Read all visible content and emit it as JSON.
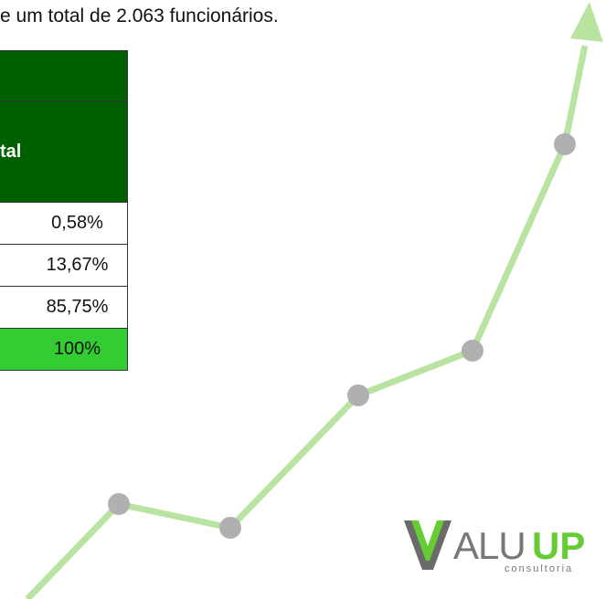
{
  "caption": "e um total de 2.063 funcionários.",
  "table": {
    "header": "tal",
    "rows": [
      "0,58%",
      "13,67%",
      "85,75%"
    ],
    "total": "100%"
  },
  "logo": {
    "name_gray": "ALU",
    "name_green": "UP",
    "tagline": "consultoria"
  }
}
